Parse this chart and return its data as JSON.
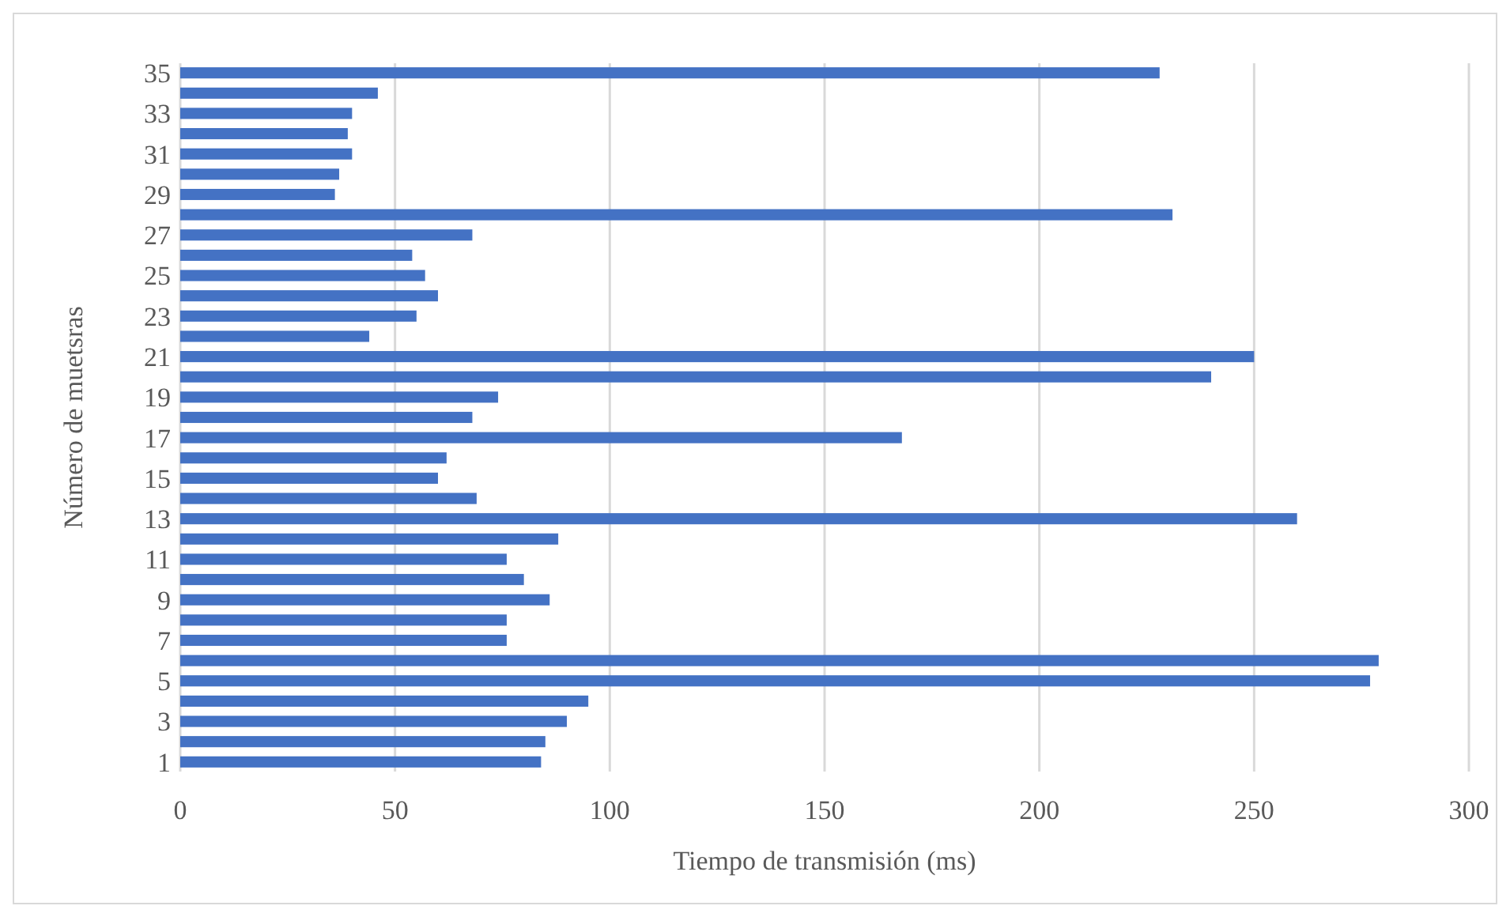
{
  "chart_data": {
    "type": "bar",
    "orientation": "horizontal",
    "xlabel": "Tiempo de transmisión (ms)",
    "ylabel": "Número de muetsras",
    "categories": [
      "35",
      null,
      "33",
      null,
      "31",
      null,
      "29",
      null,
      "27",
      null,
      "25",
      null,
      "23",
      null,
      "21",
      null,
      "19",
      null,
      "17",
      null,
      "15",
      null,
      "13",
      null,
      "11",
      null,
      "9",
      null,
      "7",
      null,
      "5",
      null,
      "3",
      null,
      "1"
    ],
    "values": [
      228,
      46,
      40,
      39,
      40,
      37,
      36,
      231,
      68,
      54,
      57,
      60,
      55,
      44,
      250,
      240,
      74,
      68,
      168,
      62,
      60,
      69,
      260,
      88,
      76,
      80,
      86,
      76,
      76,
      279,
      277,
      95,
      90,
      85,
      84
    ],
    "color": "#4472c4",
    "xlim": [
      0,
      300
    ],
    "xticks": [
      0,
      50,
      100,
      150,
      200,
      250,
      300
    ],
    "grid": "x"
  }
}
